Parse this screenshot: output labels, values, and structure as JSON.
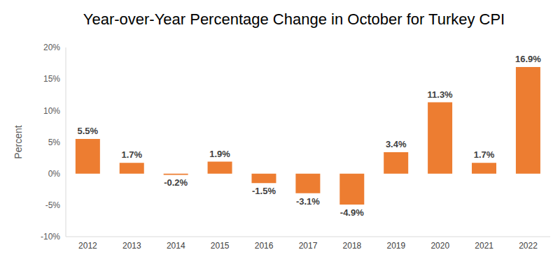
{
  "chart_data": {
    "type": "bar",
    "title": "Year-over-Year Percentage Change in October for Turkey CPI",
    "y_label": "Percent",
    "categories": [
      "2012",
      "2013",
      "2014",
      "2015",
      "2016",
      "2017",
      "2018",
      "2019",
      "2020",
      "2021",
      "2022"
    ],
    "values": [
      5.5,
      1.7,
      -0.2,
      1.9,
      -1.5,
      -3.1,
      -4.9,
      3.4,
      11.3,
      1.7,
      16.9
    ],
    "value_labels": [
      "5.5%",
      "1.7%",
      "-0.2%",
      "1.9%",
      "-1.5%",
      "-3.1%",
      "-4.9%",
      "3.4%",
      "11.3%",
      "1.7%",
      "16.9%"
    ],
    "color": "#ED7D31",
    "ylim": [
      -10,
      20
    ],
    "yticks": [
      {
        "value": -10,
        "label": "-10%"
      },
      {
        "value": -5,
        "label": "-5%"
      },
      {
        "value": 0,
        "label": "0%"
      },
      {
        "value": 5,
        "label": "5%"
      },
      {
        "value": 10,
        "label": "10%"
      },
      {
        "value": 15,
        "label": "15%"
      },
      {
        "value": 20,
        "label": "20%"
      }
    ],
    "grid": false,
    "data_labels": true
  }
}
